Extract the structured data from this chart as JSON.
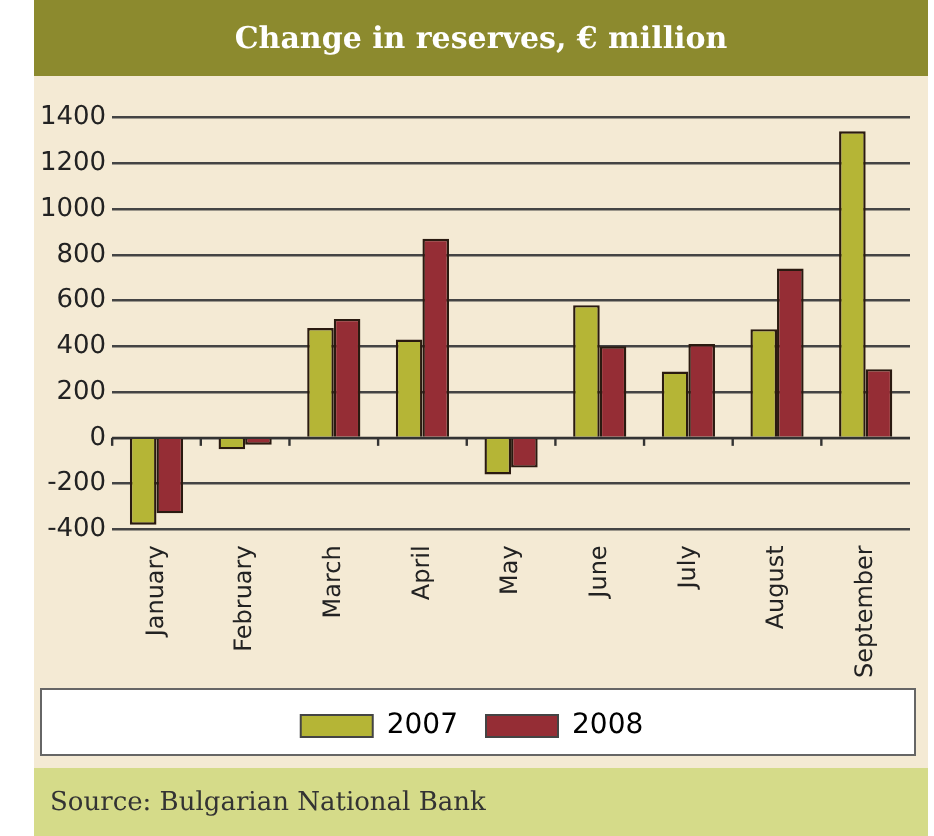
{
  "chart_data": {
    "type": "bar",
    "title": "Change in reserves, € million",
    "categories": [
      "January",
      "February",
      "March",
      "April",
      "May",
      "June",
      "July",
      "August",
      "September"
    ],
    "series": [
      {
        "name": "2007",
        "color": "#b5b536",
        "values": [
          -380,
          -50,
          480,
          430,
          -160,
          580,
          290,
          475,
          1340
        ]
      },
      {
        "name": "2008",
        "color": "#952d35",
        "values": [
          -330,
          -30,
          520,
          870,
          -130,
          400,
          410,
          740,
          300
        ]
      }
    ],
    "ylim": [
      -400,
      1400
    ],
    "yticks": [
      -400,
      -200,
      0,
      200,
      400,
      600,
      800,
      1000,
      1200,
      1400
    ],
    "grid": "y",
    "legend": "bottom",
    "annotations": [
      "Source: Bulgarian National Bank"
    ]
  }
}
